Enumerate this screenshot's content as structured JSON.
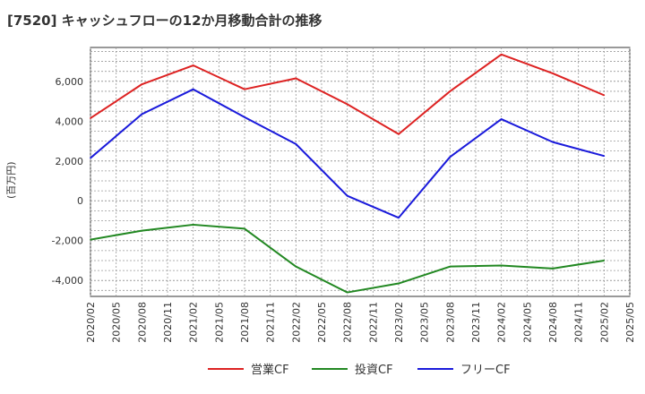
{
  "chart_data": {
    "type": "line",
    "title": "[7520]  キャッシュフローの12か月移動合計の推移",
    "ylabel": "(百万円)",
    "xlabel": "",
    "x": [
      "2020/02",
      "2020/05",
      "2020/08",
      "2020/11",
      "2021/02",
      "2021/05",
      "2021/08",
      "2021/11",
      "2022/02",
      "2022/05",
      "2022/08",
      "2022/11",
      "2023/02",
      "2023/05",
      "2023/08",
      "2023/11",
      "2024/02",
      "2024/05",
      "2024/08",
      "2024/11",
      "2025/02",
      "2025/05"
    ],
    "ylim": [
      -4800,
      7700
    ],
    "yticks": [
      -4000,
      -2000,
      0,
      2000,
      4000,
      6000
    ],
    "ytick_labels": [
      "-4,000",
      "-2,000",
      "0",
      "2,000",
      "4,000",
      "6,000"
    ],
    "grid": true,
    "legend_position": "bottom",
    "series": [
      {
        "name": "営業CF",
        "color": "#dd2222",
        "x": [
          "2020/02",
          "2020/08",
          "2021/02",
          "2021/08",
          "2022/02",
          "2022/08",
          "2023/02",
          "2023/08",
          "2024/02",
          "2024/08",
          "2025/02"
        ],
        "values": [
          4150,
          5850,
          6800,
          5600,
          6150,
          4850,
          3350,
          5500,
          7350,
          6400,
          5300
        ]
      },
      {
        "name": "投資CF",
        "color": "#228822",
        "x": [
          "2020/02",
          "2020/08",
          "2021/02",
          "2021/08",
          "2022/02",
          "2022/08",
          "2023/02",
          "2023/08",
          "2024/02",
          "2024/08",
          "2025/02"
        ],
        "values": [
          -1950,
          -1500,
          -1200,
          -1400,
          -3300,
          -4600,
          -4150,
          -3300,
          -3250,
          -3400,
          -3000
        ]
      },
      {
        "name": "フリーCF",
        "color": "#1a1adb",
        "x": [
          "2020/02",
          "2020/08",
          "2021/02",
          "2021/08",
          "2022/02",
          "2022/08",
          "2023/02",
          "2023/08",
          "2024/02",
          "2024/08",
          "2025/02"
        ],
        "values": [
          2150,
          4350,
          5600,
          4200,
          2850,
          250,
          -850,
          2200,
          4100,
          2950,
          2250
        ]
      }
    ]
  }
}
